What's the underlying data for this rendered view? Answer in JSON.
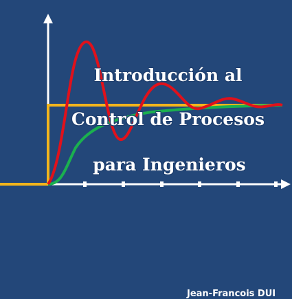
{
  "cover": {
    "title_lines": [
      "Introducción al",
      "Control de Procesos",
      "para Ingenieros"
    ],
    "author": "Jean-Francois DUI"
  },
  "colors": {
    "background": "#234779",
    "axes": "#ffffff",
    "step_input": "#f2b51c",
    "underdamped_response": "#e0111b",
    "overdamped_response": "#1bb04f",
    "title_text": "#ffffff"
  }
}
